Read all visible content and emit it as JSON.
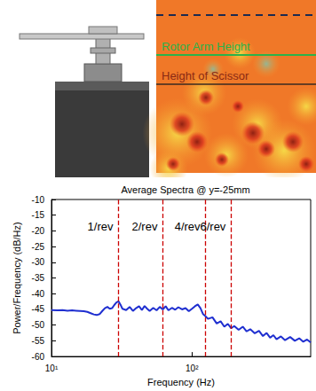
{
  "illustration": {
    "labels": [
      {
        "text": "Rotor Arm Height"
      },
      {
        "text": "Height of Scissor"
      }
    ]
  },
  "chart_data": {
    "type": "line",
    "title": "Average Spectra @ y=-25mm",
    "x_label": "Frequency (Hz)",
    "y_label": "Power/Frequency (dB/Hz)",
    "log": "x",
    "grid": false,
    "color": "#1f2fd0",
    "x": [
      10,
      11,
      12,
      13,
      14,
      15,
      16,
      17,
      18,
      19,
      20,
      21,
      22,
      23,
      24,
      25,
      26,
      27,
      28,
      29,
      30,
      31,
      32,
      34,
      36,
      38,
      40,
      42,
      44,
      46,
      48,
      50,
      53,
      56,
      59,
      62,
      65,
      68,
      72,
      76,
      80,
      85,
      90,
      95,
      100,
      105,
      110,
      115,
      120,
      125,
      130,
      140,
      150,
      160,
      170,
      180,
      190,
      200,
      215,
      230,
      245,
      260,
      280,
      300,
      320,
      340,
      360,
      380,
      400,
      430,
      460,
      500,
      540,
      580,
      620,
      660,
      700
    ],
    "values": [
      -45.2,
      -45.3,
      -45.2,
      -45.4,
      -45.3,
      -45.4,
      -45.5,
      -45.6,
      -45.8,
      -46.2,
      -46.6,
      -46.8,
      -46.5,
      -45.5,
      -44.6,
      -44.2,
      -44.8,
      -44.6,
      -43.6,
      -42.8,
      -42.4,
      -43.5,
      -44.8,
      -45.2,
      -44.2,
      -45.5,
      -44.6,
      -44.0,
      -45.2,
      -43.9,
      -44.8,
      -45.5,
      -44.5,
      -45.3,
      -44.2,
      -45.0,
      -44.0,
      -45.3,
      -44.5,
      -45.1,
      -44.3,
      -45.0,
      -44.6,
      -45.6,
      -44.8,
      -44.0,
      -43.4,
      -44.6,
      -46.5,
      -47.2,
      -48.0,
      -47.5,
      -49.5,
      -48.8,
      -50.5,
      -49.6,
      -51.0,
      -50.3,
      -51.5,
      -50.5,
      -52.0,
      -51.3,
      -52.6,
      -51.8,
      -53.5,
      -52.5,
      -54.0,
      -53.2,
      -54.5,
      -53.6,
      -54.8,
      -53.8,
      -55.0,
      -54.2,
      -55.3,
      -54.6,
      -55.5
    ],
    "xlim": [
      10,
      700
    ],
    "xticks": [
      {
        "value": 10,
        "label": "10¹"
      },
      {
        "value": 100,
        "label": "10²"
      }
    ],
    "ylim": [
      -60,
      -10
    ],
    "yticks": [
      -60,
      -55,
      -50,
      -45,
      -40,
      -35,
      -30,
      -25,
      -20,
      -15,
      -10
    ],
    "annotations": [
      {
        "label": "1/rev",
        "x": 30,
        "color": "#cc0000",
        "line_style": "dashed"
      },
      {
        "label": "2/rev",
        "x": 62,
        "color": "#cc0000",
        "line_style": "dashed"
      },
      {
        "label": "4/rev",
        "x": 125,
        "color": "#cc0000",
        "line_style": "dashed"
      },
      {
        "label": "6/rev",
        "x": 190,
        "color": "#cc0000",
        "line_style": "dashed"
      }
    ]
  }
}
